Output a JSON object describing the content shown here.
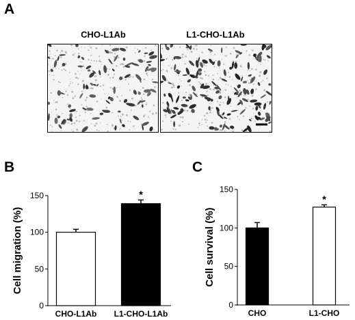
{
  "panels": {
    "a": {
      "letter": "A",
      "images": [
        {
          "label": "CHO-L1Ab"
        },
        {
          "label": "L1-CHO-L1Ab"
        }
      ]
    },
    "b": {
      "letter": "B"
    },
    "c": {
      "letter": "C"
    }
  },
  "chart_data": [
    {
      "type": "bar",
      "panel": "B",
      "categories": [
        "CHO-L1Ab",
        "L1-CHO-L1Ab"
      ],
      "values": [
        100,
        139
      ],
      "errors": [
        4,
        5
      ],
      "fills": [
        "#ffffff",
        "#000000"
      ],
      "annotations": [
        "",
        "*"
      ],
      "ylabel": "Cell migration (%)",
      "ylim": [
        0,
        150
      ],
      "yticks": [
        0,
        50,
        100,
        150
      ],
      "grid": false
    },
    {
      "type": "bar",
      "panel": "C",
      "categories": [
        "CHO",
        "L1-CHO"
      ],
      "values": [
        100,
        127
      ],
      "errors": [
        7,
        3
      ],
      "fills": [
        "#000000",
        "#ffffff"
      ],
      "annotations": [
        "",
        "*"
      ],
      "ylabel": "Cell survival (%)",
      "ylim": [
        0,
        150
      ],
      "yticks": [
        0,
        50,
        100,
        150
      ],
      "grid": false
    }
  ]
}
